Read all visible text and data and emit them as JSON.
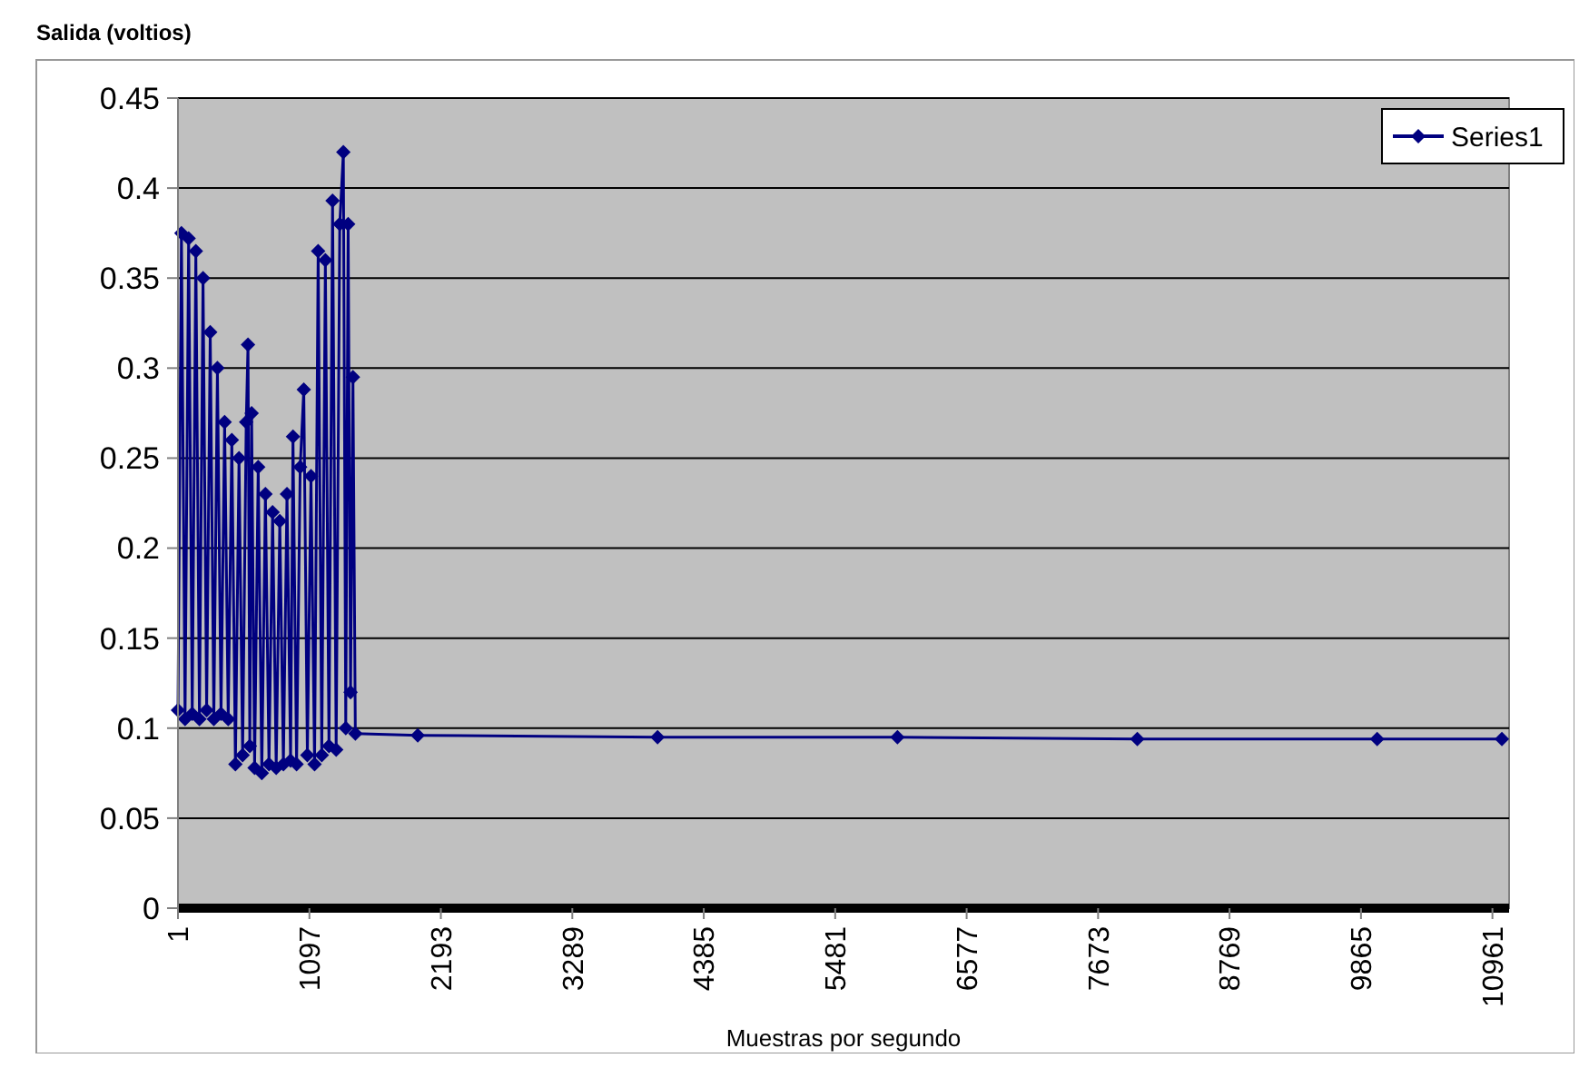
{
  "chart_data": {
    "type": "line",
    "xlabel": "Muestras por segundo",
    "ylabel": "Salida (voltios)",
    "xlim": [
      1,
      11100
    ],
    "xticks": [
      1,
      1097,
      2193,
      3289,
      4385,
      5481,
      6577,
      7673,
      8769,
      9865,
      10961
    ],
    "ylim": [
      0,
      0.45
    ],
    "yticks": [
      0,
      0.05,
      0.1,
      0.15,
      0.2,
      0.25,
      0.3,
      0.35,
      0.4,
      0.45
    ],
    "grid": "y",
    "legend": "top right",
    "marker": "diamond",
    "line_style": "solid",
    "series": [
      {
        "name": "Series1",
        "color": "#000080",
        "x": [
          1,
          30,
          60,
          90,
          120,
          150,
          180,
          210,
          240,
          270,
          300,
          330,
          360,
          390,
          420,
          450,
          480,
          510,
          540,
          570,
          585,
          600,
          615,
          640,
          670,
          700,
          730,
          760,
          790,
          820,
          850,
          880,
          910,
          940,
          960,
          990,
          1020,
          1050,
          1080,
          1110,
          1140,
          1170,
          1200,
          1230,
          1260,
          1290,
          1320,
          1350,
          1380,
          1400,
          1420,
          1440,
          1460,
          1480,
          2000,
          4000,
          6000,
          8000,
          10000,
          11040
        ],
        "values": [
          0.11,
          0.375,
          0.105,
          0.372,
          0.108,
          0.365,
          0.105,
          0.35,
          0.11,
          0.32,
          0.105,
          0.3,
          0.108,
          0.27,
          0.105,
          0.26,
          0.08,
          0.25,
          0.085,
          0.27,
          0.313,
          0.09,
          0.275,
          0.078,
          0.245,
          0.075,
          0.23,
          0.08,
          0.22,
          0.078,
          0.215,
          0.08,
          0.23,
          0.082,
          0.262,
          0.08,
          0.245,
          0.288,
          0.085,
          0.24,
          0.08,
          0.365,
          0.085,
          0.36,
          0.09,
          0.393,
          0.088,
          0.38,
          0.42,
          0.1,
          0.38,
          0.12,
          0.295,
          0.097,
          0.096,
          0.095,
          0.095,
          0.094,
          0.094,
          0.094
        ]
      }
    ]
  }
}
